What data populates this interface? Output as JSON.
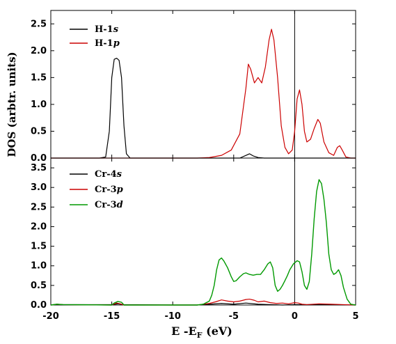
{
  "chart_data": {
    "type": "line",
    "xlabel": "E -E",
    "xlabel_sub": "F",
    "xlabel_unit": " (eV)",
    "ylabel": "DOS (arbtr. units)",
    "xlim": [
      -20,
      5
    ],
    "x_ticks": [
      -20,
      -15,
      -10,
      -5,
      0,
      5
    ],
    "fermi_line_x": 0,
    "panels": [
      {
        "name": "H",
        "ylim": [
          0,
          2.75
        ],
        "y_ticks": [
          "0.0",
          "0.5",
          "1.0",
          "1.5",
          "2.0",
          "2.5"
        ],
        "legend_position": "top-left",
        "series": [
          {
            "name": "H-1",
            "orbital": "s",
            "color": "#000000",
            "points": [
              [
                -20,
                0
              ],
              [
                -16,
                0
              ],
              [
                -15.5,
                0.02
              ],
              [
                -15.2,
                0.5
              ],
              [
                -15.0,
                1.5
              ],
              [
                -14.8,
                1.84
              ],
              [
                -14.6,
                1.86
              ],
              [
                -14.4,
                1.82
              ],
              [
                -14.2,
                1.5
              ],
              [
                -14.0,
                0.6
              ],
              [
                -13.8,
                0.08
              ],
              [
                -13.5,
                0
              ],
              [
                -8,
                0
              ],
              [
                -4.5,
                0
              ],
              [
                -4.0,
                0.05
              ],
              [
                -3.7,
                0.08
              ],
              [
                -3.4,
                0.04
              ],
              [
                -3.0,
                0.01
              ],
              [
                -2.5,
                0
              ],
              [
                5,
                0
              ]
            ]
          },
          {
            "name": "H-1",
            "orbital": "p",
            "color": "#cc0000",
            "points": [
              [
                -20,
                0
              ],
              [
                -8,
                0
              ],
              [
                -7,
                0.01
              ],
              [
                -6,
                0.05
              ],
              [
                -5.2,
                0.15
              ],
              [
                -4.5,
                0.45
              ],
              [
                -4.0,
                1.3
              ],
              [
                -3.8,
                1.75
              ],
              [
                -3.6,
                1.65
              ],
              [
                -3.3,
                1.4
              ],
              [
                -3.0,
                1.5
              ],
              [
                -2.7,
                1.4
              ],
              [
                -2.4,
                1.7
              ],
              [
                -2.1,
                2.2
              ],
              [
                -1.9,
                2.4
              ],
              [
                -1.7,
                2.2
              ],
              [
                -1.4,
                1.5
              ],
              [
                -1.1,
                0.6
              ],
              [
                -0.8,
                0.2
              ],
              [
                -0.5,
                0.08
              ],
              [
                -0.2,
                0.15
              ],
              [
                0,
                0.5
              ],
              [
                0.2,
                1.1
              ],
              [
                0.4,
                1.27
              ],
              [
                0.6,
                1.0
              ],
              [
                0.8,
                0.5
              ],
              [
                1.0,
                0.3
              ],
              [
                1.3,
                0.35
              ],
              [
                1.6,
                0.55
              ],
              [
                1.9,
                0.72
              ],
              [
                2.1,
                0.65
              ],
              [
                2.4,
                0.3
              ],
              [
                2.8,
                0.1
              ],
              [
                3.2,
                0.05
              ],
              [
                3.5,
                0.2
              ],
              [
                3.7,
                0.23
              ],
              [
                3.9,
                0.15
              ],
              [
                4.2,
                0.02
              ],
              [
                4.6,
                0
              ],
              [
                5,
                0
              ]
            ]
          }
        ]
      },
      {
        "name": "Cr",
        "ylim": [
          0,
          3.75
        ],
        "y_ticks": [
          "0.0",
          "0.5",
          "1.0",
          "1.5",
          "2.0",
          "2.5",
          "3.0",
          "3.5"
        ],
        "legend_position": "top-left",
        "series": [
          {
            "name": "Cr-4",
            "orbital": "s",
            "color": "#000000",
            "points": [
              [
                -20,
                0
              ],
              [
                -19,
                0.01
              ],
              [
                -15,
                0.01
              ],
              [
                -14.5,
                0.03
              ],
              [
                -14,
                0.01
              ],
              [
                -10,
                0
              ],
              [
                -8,
                0
              ],
              [
                -7,
                0.02
              ],
              [
                -6,
                0.04
              ],
              [
                -5,
                0.02
              ],
              [
                -4,
                0.05
              ],
              [
                -3,
                0.02
              ],
              [
                -2,
                0.01
              ],
              [
                -1,
                0
              ],
              [
                0,
                0.01
              ],
              [
                2,
                0.01
              ],
              [
                5,
                0
              ]
            ]
          },
          {
            "name": "Cr-3",
            "orbital": "p",
            "color": "#cc0000",
            "points": [
              [
                -20,
                0
              ],
              [
                -19.5,
                0.02
              ],
              [
                -19,
                0.01
              ],
              [
                -15,
                0
              ],
              [
                -14.6,
                0.05
              ],
              [
                -14.3,
                0.03
              ],
              [
                -14,
                0
              ],
              [
                -8,
                0
              ],
              [
                -7.5,
                0.02
              ],
              [
                -7,
                0.04
              ],
              [
                -6.5,
                0.08
              ],
              [
                -6,
                0.13
              ],
              [
                -5.5,
                0.1
              ],
              [
                -5,
                0.08
              ],
              [
                -4.5,
                0.1
              ],
              [
                -4,
                0.14
              ],
              [
                -3.7,
                0.15
              ],
              [
                -3.3,
                0.12
              ],
              [
                -3,
                0.08
              ],
              [
                -2.5,
                0.1
              ],
              [
                -2,
                0.06
              ],
              [
                -1.5,
                0.04
              ],
              [
                -1,
                0.05
              ],
              [
                -0.5,
                0.03
              ],
              [
                0,
                0.06
              ],
              [
                0.3,
                0.05
              ],
              [
                0.6,
                0.02
              ],
              [
                1,
                0.01
              ],
              [
                2,
                0.03
              ],
              [
                3,
                0.02
              ],
              [
                4,
                0.01
              ],
              [
                5,
                0
              ]
            ]
          },
          {
            "name": "Cr-3",
            "orbital": "d",
            "color": "#009900",
            "points": [
              [
                -20,
                0
              ],
              [
                -19.5,
                0.02
              ],
              [
                -19,
                0.01
              ],
              [
                -15,
                0
              ],
              [
                -14.8,
                0.05
              ],
              [
                -14.5,
                0.09
              ],
              [
                -14.2,
                0.07
              ],
              [
                -14,
                0
              ],
              [
                -8,
                0
              ],
              [
                -7.5,
                0.02
              ],
              [
                -7,
                0.1
              ],
              [
                -6.8,
                0.25
              ],
              [
                -6.6,
                0.5
              ],
              [
                -6.4,
                0.9
              ],
              [
                -6.2,
                1.15
              ],
              [
                -6.0,
                1.2
              ],
              [
                -5.8,
                1.12
              ],
              [
                -5.5,
                0.95
              ],
              [
                -5.2,
                0.72
              ],
              [
                -5.0,
                0.6
              ],
              [
                -4.8,
                0.62
              ],
              [
                -4.5,
                0.72
              ],
              [
                -4.2,
                0.8
              ],
              [
                -4.0,
                0.82
              ],
              [
                -3.7,
                0.78
              ],
              [
                -3.4,
                0.76
              ],
              [
                -3.1,
                0.78
              ],
              [
                -2.8,
                0.78
              ],
              [
                -2.5,
                0.9
              ],
              [
                -2.2,
                1.05
              ],
              [
                -2.0,
                1.1
              ],
              [
                -1.8,
                0.95
              ],
              [
                -1.6,
                0.5
              ],
              [
                -1.4,
                0.35
              ],
              [
                -1.2,
                0.4
              ],
              [
                -1.0,
                0.5
              ],
              [
                -0.8,
                0.62
              ],
              [
                -0.6,
                0.75
              ],
              [
                -0.4,
                0.9
              ],
              [
                -0.1,
                1.05
              ],
              [
                0.2,
                1.13
              ],
              [
                0.4,
                1.1
              ],
              [
                0.6,
                0.85
              ],
              [
                0.8,
                0.5
              ],
              [
                1.0,
                0.4
              ],
              [
                1.2,
                0.6
              ],
              [
                1.4,
                1.3
              ],
              [
                1.6,
                2.2
              ],
              [
                1.8,
                2.9
              ],
              [
                2.0,
                3.2
              ],
              [
                2.2,
                3.1
              ],
              [
                2.4,
                2.7
              ],
              [
                2.6,
                2.1
              ],
              [
                2.8,
                1.3
              ],
              [
                3.0,
                0.9
              ],
              [
                3.2,
                0.78
              ],
              [
                3.4,
                0.82
              ],
              [
                3.6,
                0.9
              ],
              [
                3.8,
                0.75
              ],
              [
                4.0,
                0.45
              ],
              [
                4.3,
                0.15
              ],
              [
                4.6,
                0.02
              ],
              [
                5,
                0
              ]
            ]
          }
        ]
      }
    ]
  }
}
